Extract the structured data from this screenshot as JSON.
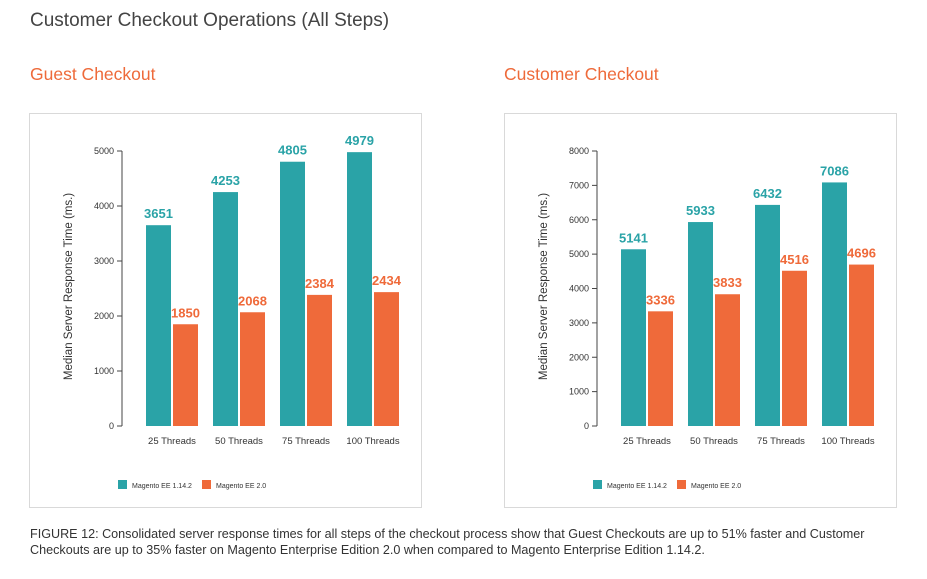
{
  "page": {
    "title": "Customer Checkout Operations (All Steps)",
    "caption": "FIGURE 12: Consolidated server response times for all steps of the checkout process show that Guest Checkouts are up to 51% faster and Customer Checkouts are up to 35% faster on Magento Enterprise Edition 2.0 when compared to Magento Enterprise Edition 1.14.2."
  },
  "colors": {
    "teal": "#2aa3a7",
    "orange": "#ef6a3a",
    "title_orange": "#ee6a3a",
    "axis": "#444444"
  },
  "chart_data": [
    {
      "type": "bar",
      "title": "Guest Checkout",
      "ylabel": "Median Server Response Time (ms.)",
      "xlabel": "",
      "categories": [
        "25 Threads",
        "50 Threads",
        "75 Threads",
        "100 Threads"
      ],
      "ylim": [
        0,
        5000
      ],
      "yticks": [
        0,
        1000,
        2000,
        3000,
        4000,
        5000
      ],
      "grid": false,
      "legend": "bottom-left",
      "series": [
        {
          "name": "Magento EE 1.14.2",
          "color": "#2aa3a7",
          "values": [
            3651,
            4253,
            4805,
            4979
          ]
        },
        {
          "name": "Magento EE 2.0",
          "color": "#ef6a3a",
          "values": [
            1850,
            2068,
            2384,
            2434
          ]
        }
      ]
    },
    {
      "type": "bar",
      "title": "Customer Checkout",
      "ylabel": "Median Server Response Time (ms.)",
      "xlabel": "",
      "categories": [
        "25 Threads",
        "50 Threads",
        "75 Threads",
        "100 Threads"
      ],
      "ylim": [
        0,
        8000
      ],
      "yticks": [
        0,
        1000,
        2000,
        3000,
        4000,
        5000,
        6000,
        7000,
        8000
      ],
      "grid": false,
      "legend": "bottom-left",
      "series": [
        {
          "name": "Magento EE 1.14.2",
          "color": "#2aa3a7",
          "values": [
            5141,
            5933,
            6432,
            7086
          ]
        },
        {
          "name": "Magento EE 2.0",
          "color": "#ef6a3a",
          "values": [
            3336,
            3833,
            4516,
            4696
          ]
        }
      ]
    }
  ]
}
